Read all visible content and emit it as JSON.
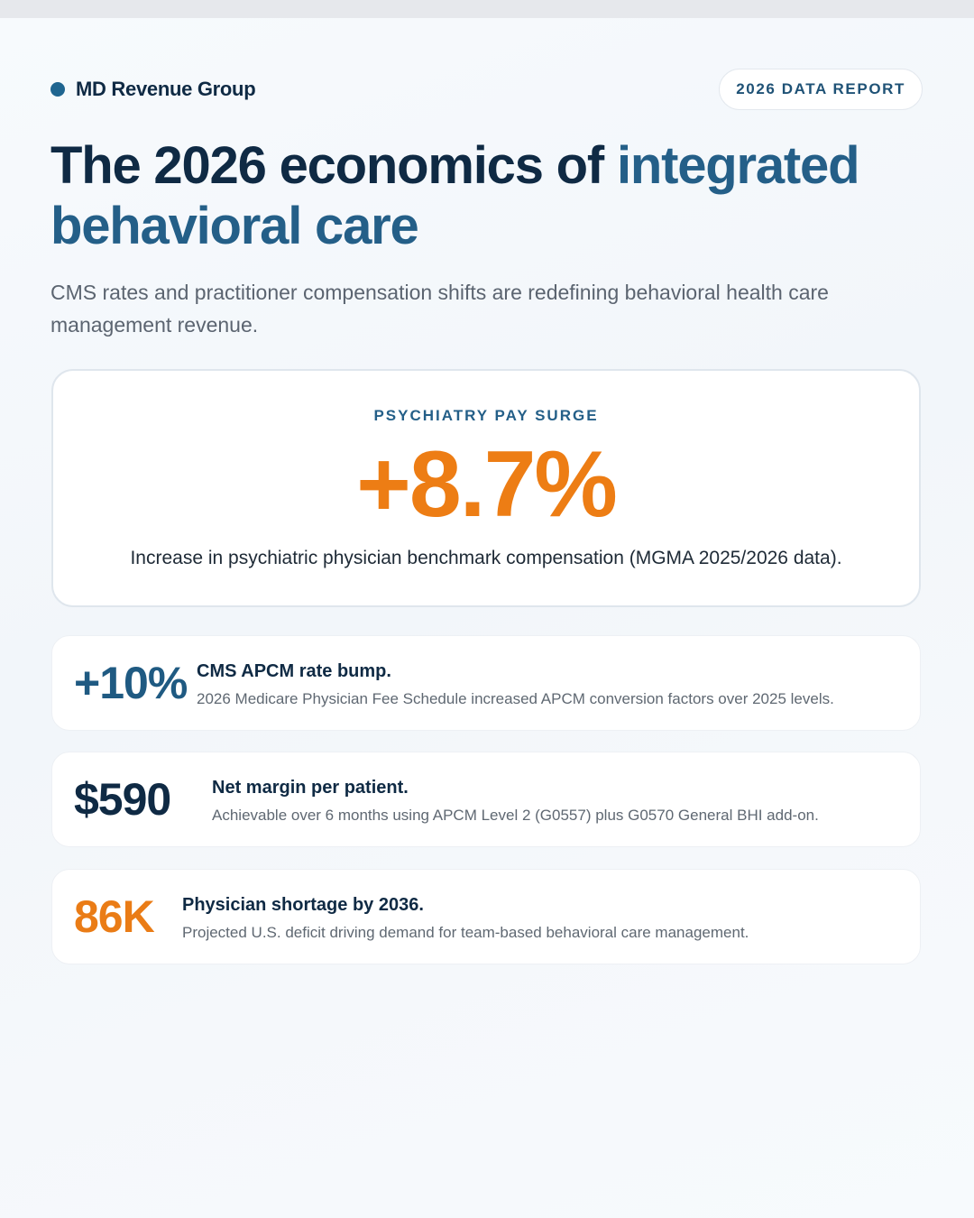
{
  "brand": {
    "name": "MD Revenue Group",
    "badge": "2026 DATA REPORT",
    "accent_color": "#1f6590"
  },
  "headline": {
    "main": "The 2026 economics of ",
    "accent": "integrated behavioral care"
  },
  "subtitle": "CMS rates and practitioner compensation shifts are redefining behavioral health care management revenue.",
  "hero": {
    "label": "PSYCHIATRY PAY SURGE",
    "value": "+8.7%",
    "description": "Increase in psychiatric physician benchmark compensation (MGMA 2025/2026 data).",
    "value_color": "#ed7d14"
  },
  "stats": [
    {
      "value": "+10%",
      "title": "CMS APCM rate bump.",
      "description": "2026 Medicare Physician Fee Schedule increased APCM conversion factors over 2025 levels.",
      "color": "#1f5a82"
    },
    {
      "value": "$590",
      "title": "Net margin per patient.",
      "description": "Achievable over 6 months using APCM Level 2 (G0557) plus G0570 General BHI add-on.",
      "color": "#0f2a44"
    },
    {
      "value": "86K",
      "title": "Physician shortage by 2036.",
      "description": "Projected U.S. deficit driving demand for team-based behavioral care management.",
      "color": "#ea7c16"
    }
  ]
}
